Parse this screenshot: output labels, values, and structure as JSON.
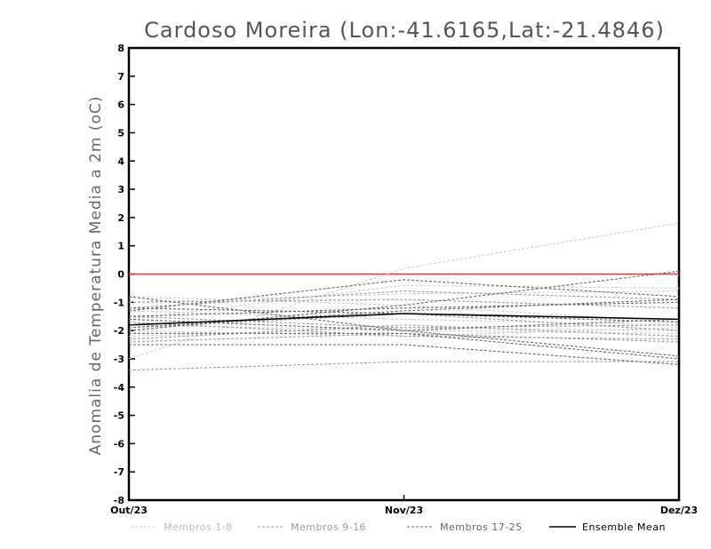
{
  "chart_data": {
    "type": "line",
    "title": "Cardoso Moreira (Lon:-41.6165,Lat:-21.4846)",
    "ylabel": "Anomalia de Temperatura Media a 2m (oC)",
    "xlabel": "",
    "categories": [
      "Out/23",
      "Nov/23",
      "Dez/23"
    ],
    "ylim": [
      -8,
      8
    ],
    "yticks": [
      "-8",
      "-7",
      "-6",
      "-5",
      "-4",
      "-3",
      "-2",
      "-1",
      "0",
      "1",
      "2",
      "3",
      "4",
      "5",
      "6",
      "7",
      "8"
    ],
    "grid": false,
    "legend_position": "bottom",
    "reference_line": {
      "value": 0,
      "color": "#ee3333"
    },
    "groups": [
      {
        "name": "Membros 1-8",
        "color": "#cccccc",
        "style": "dashed"
      },
      {
        "name": "Membros 9-16",
        "color": "#9a9a9a",
        "style": "dashed"
      },
      {
        "name": "Membros 17-25",
        "color": "#666666",
        "style": "dashed"
      },
      {
        "name": "Ensemble Mean",
        "color": "#000000",
        "style": "solid"
      }
    ],
    "series": [
      {
        "group": 0,
        "values": [
          -3.0,
          0.2,
          1.8
        ]
      },
      {
        "group": 0,
        "values": [
          -1.6,
          -0.4,
          -0.5
        ]
      },
      {
        "group": 0,
        "values": [
          -1.0,
          -0.7,
          -0.6
        ]
      },
      {
        "group": 0,
        "values": [
          -2.0,
          -2.2,
          -1.9
        ]
      },
      {
        "group": 0,
        "values": [
          -0.8,
          -1.1,
          -1.7
        ]
      },
      {
        "group": 0,
        "values": [
          -1.8,
          -2.0,
          -2.1
        ]
      },
      {
        "group": 0,
        "values": [
          -2.2,
          -1.9,
          -2.0
        ]
      },
      {
        "group": 0,
        "values": [
          -1.3,
          -1.6,
          -1.8
        ]
      },
      {
        "group": 1,
        "values": [
          -1.2,
          -0.6,
          -0.9
        ]
      },
      {
        "group": 1,
        "values": [
          -2.4,
          -2.1,
          -2.4
        ]
      },
      {
        "group": 1,
        "values": [
          -1.5,
          -1.9,
          -1.8
        ]
      },
      {
        "group": 1,
        "values": [
          -1.9,
          -1.4,
          -2.0
        ]
      },
      {
        "group": 1,
        "values": [
          -2.3,
          -1.8,
          -2.2
        ]
      },
      {
        "group": 1,
        "values": [
          -1.0,
          -0.9,
          -1.2
        ]
      },
      {
        "group": 1,
        "values": [
          -3.4,
          -3.1,
          -3.1
        ]
      },
      {
        "group": 1,
        "values": [
          -1.7,
          -2.2,
          -2.3
        ]
      },
      {
        "group": 2,
        "values": [
          -1.3,
          -0.2,
          -0.8
        ]
      },
      {
        "group": 2,
        "values": [
          -1.5,
          -1.2,
          -1.0
        ]
      },
      {
        "group": 2,
        "values": [
          -2.5,
          -2.5,
          -3.2
        ]
      },
      {
        "group": 2,
        "values": [
          -0.8,
          -2.0,
          -2.9
        ]
      },
      {
        "group": 2,
        "values": [
          -1.9,
          -1.3,
          -0.9
        ]
      },
      {
        "group": 2,
        "values": [
          -2.1,
          -2.1,
          -3.0
        ]
      },
      {
        "group": 2,
        "values": [
          -1.2,
          -1.4,
          -1.7
        ]
      },
      {
        "group": 2,
        "values": [
          -1.6,
          -2.0,
          -1.6
        ]
      },
      {
        "group": 2,
        "values": [
          -2.0,
          -1.1,
          0.1
        ]
      },
      {
        "group": 3,
        "values": [
          -1.8,
          -1.4,
          -1.6
        ]
      }
    ]
  }
}
